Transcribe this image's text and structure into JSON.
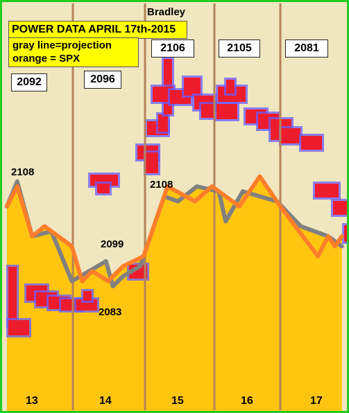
{
  "header": {
    "author": "Bradley",
    "title": "POWER DATA APRIL 17th-2015",
    "legend_line1": "gray line=projection",
    "legend_line2": "orange = SPX"
  },
  "colors": {
    "background": "#f0e6c0",
    "fill": "#ffc511",
    "projection": "#808080",
    "spx": "#ff7e2a",
    "blob": "#ed1c2c",
    "blob_outline": "#6a5cff",
    "divider": "#b5835a",
    "border": "#22cc22"
  },
  "chart_data": {
    "type": "line",
    "title": "POWER DATA APRIL 17th-2015",
    "x_tick_labels": [
      "13",
      "14",
      "15",
      "16",
      "17"
    ],
    "value_boxes": [
      "2092",
      "2096",
      "2106",
      "2105",
      "2081"
    ],
    "annotations": [
      "2108",
      "2099",
      "2083",
      "2108"
    ],
    "series": [
      {
        "name": "projection",
        "x": [
          0.0,
          0.15,
          0.37,
          0.65,
          0.95,
          1.45,
          1.55,
          1.7,
          1.95,
          2.3,
          2.5,
          2.78,
          3.1,
          3.2,
          3.45,
          3.95,
          4.3,
          4.7,
          4.9
        ],
        "y": [
          2100,
          2105,
          2094,
          2095,
          2085,
          2089,
          2084,
          2086,
          2088,
          2102,
          2101,
          2104,
          2103,
          2097,
          2103,
          2101,
          2096,
          2094,
          2092
        ]
      },
      {
        "name": "SPX",
        "x": [
          0.0,
          0.15,
          0.37,
          0.55,
          0.95,
          1.1,
          1.25,
          1.48,
          1.7,
          2.0,
          2.35,
          2.75,
          3.0,
          3.4,
          3.7,
          4.0,
          4.55,
          4.7,
          4.8,
          4.9
        ],
        "y": [
          2100,
          2104,
          2094,
          2096,
          2092,
          2085,
          2087,
          2085,
          2088,
          2090,
          2104,
          2101,
          2104,
          2100,
          2106,
          2100,
          2090,
          2094,
          2092,
          2094
        ]
      }
    ]
  }
}
